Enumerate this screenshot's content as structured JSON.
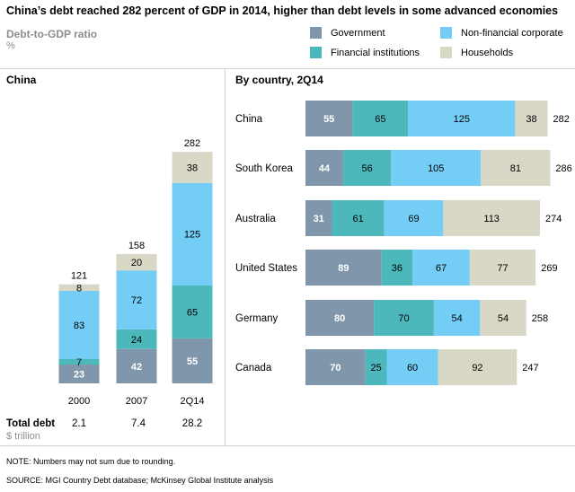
{
  "title": "China’s debt reached 282 percent of GDP in 2014, higher than debt levels in some advanced economies",
  "subtitle": "Debt-to-GDP ratio",
  "unit": "%",
  "legend": [
    {
      "label": "Government",
      "color": "#7f96ab"
    },
    {
      "label": "Non-financial corporate",
      "color": "#73cdf5"
    },
    {
      "label": "Financial institutions",
      "color": "#4cb8bc"
    },
    {
      "label": "Households",
      "color": "#d9d7c6"
    }
  ],
  "left_section_title": "China",
  "right_section_title": "By country, 2Q14",
  "total_debt": {
    "label": "Total debt",
    "unit": "$ trillion",
    "values": [
      "2.1",
      "7.4",
      "28.2"
    ]
  },
  "note": "NOTE: Numbers may not sum due to rounding.",
  "source": "SOURCE:  MGI Country Debt database; McKinsey Global Institute analysis",
  "chart_data": [
    {
      "type": "bar",
      "stacked": true,
      "orientation": "vertical",
      "title": "China",
      "categories": [
        "2000",
        "2007",
        "2Q14"
      ],
      "series": [
        {
          "name": "Government",
          "values": [
            23,
            42,
            55
          ],
          "labels": [
            "23",
            "42",
            "55"
          ]
        },
        {
          "name": "Financial institutions",
          "values": [
            7,
            24,
            65
          ],
          "labels": [
            "7",
            "24",
            "65"
          ]
        },
        {
          "name": "Non-financial corporate",
          "values": [
            83,
            72,
            125
          ],
          "labels": [
            "83",
            "72",
            "125"
          ]
        },
        {
          "name": "Households",
          "values": [
            8,
            20,
            38
          ],
          "labels": [
            "8",
            "20",
            "38"
          ]
        }
      ],
      "totals": [
        "121",
        "158",
        "282"
      ],
      "grid": false
    },
    {
      "type": "bar",
      "stacked": true,
      "orientation": "horizontal",
      "title": "By country, 2Q14",
      "categories": [
        "China",
        "South Korea",
        "Australia",
        "United States",
        "Germany",
        "Canada"
      ],
      "series": [
        {
          "name": "Government",
          "values": [
            55,
            44,
            31,
            89,
            80,
            70
          ],
          "labels": [
            "55",
            "44",
            "31",
            "89",
            "80",
            "70"
          ]
        },
        {
          "name": "Financial institutions",
          "values": [
            65,
            56,
            61,
            36,
            70,
            25
          ],
          "labels": [
            "65",
            "56",
            "61",
            "36",
            "70",
            "25"
          ]
        },
        {
          "name": "Non-financial corporate",
          "values": [
            125,
            105,
            69,
            67,
            54,
            60
          ],
          "labels": [
            "125",
            "105",
            "69",
            "67",
            "54",
            "60"
          ]
        },
        {
          "name": "Households",
          "values": [
            38,
            81,
            113,
            77,
            54,
            92
          ],
          "labels": [
            "38",
            "81",
            "113",
            "77",
            "54",
            "92"
          ]
        }
      ],
      "totals": [
        "282",
        "286",
        "274",
        "269",
        "258",
        "247"
      ],
      "grid": false
    }
  ]
}
